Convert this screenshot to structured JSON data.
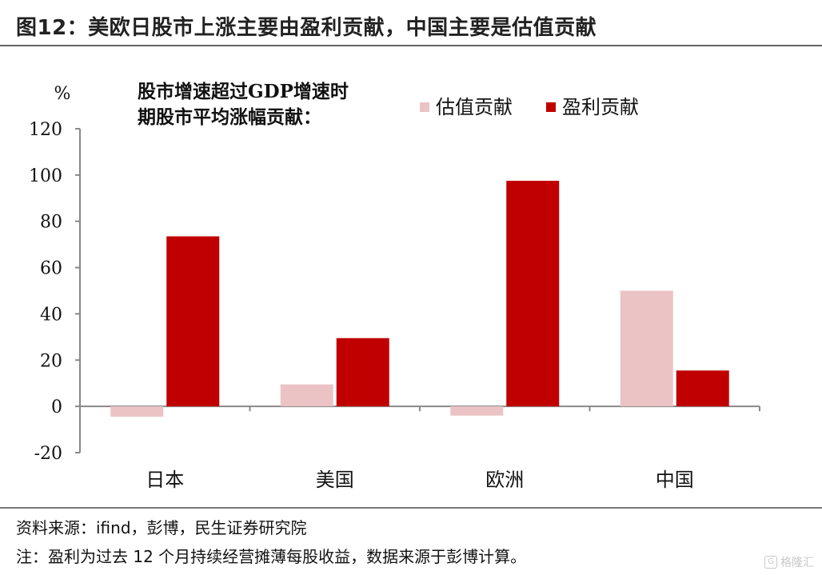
{
  "figure": {
    "title": "图12：美欧日股市上涨主要由盈利贡献，中国主要是估值贡献",
    "source": "资料来源：ifind，彭博，民生证券研究院",
    "note": "注：盈利为过去 12 个月持续经营摊薄每股收益，数据来源于彭博计算。",
    "watermark": "格隆汇",
    "watermark_icon": "G"
  },
  "colors": {
    "valuation": "#ecc3c5",
    "earnings": "#c00000",
    "axis": "#888888",
    "text": "#111111"
  },
  "chart_data": {
    "type": "bar",
    "title": "股市增速超过GDP增速时期股市平均涨幅贡献：",
    "title_lines": [
      "股市增速超过GDP增速时",
      "期股市平均涨幅贡献："
    ],
    "ylabel": "%",
    "xlabel": "",
    "ylim": [
      -20,
      120
    ],
    "yticks": [
      "-20",
      "0",
      "20",
      "40",
      "60",
      "80",
      "100",
      "120"
    ],
    "categories": [
      "日本",
      "美国",
      "欧洲",
      "中国"
    ],
    "series": [
      {
        "name": "估值贡献",
        "values": [
          -4.5,
          9.5,
          -4,
          50
        ]
      },
      {
        "name": "盈利贡献",
        "values": [
          73.5,
          29.5,
          97.5,
          15.5
        ]
      }
    ],
    "grid": false,
    "legend": "top-right"
  }
}
